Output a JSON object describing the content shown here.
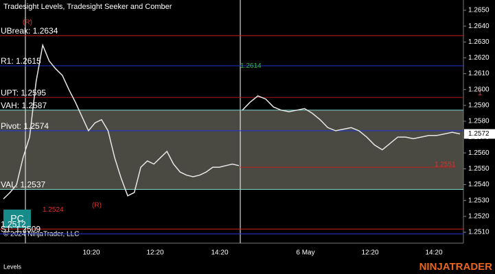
{
  "header": {
    "title": "Tradesight Levels, Tradesight Seeker and Comber"
  },
  "price_axis": {
    "ticks": [
      {
        "value": 1.265,
        "label": "1.2650"
      },
      {
        "value": 1.264,
        "label": "1.2640"
      },
      {
        "value": 1.263,
        "label": "1.2630"
      },
      {
        "value": 1.262,
        "label": "1.2620"
      },
      {
        "value": 1.261,
        "label": "1.2610"
      },
      {
        "value": 1.26,
        "label": "1.2600"
      },
      {
        "value": 1.259,
        "label": "1.2590"
      },
      {
        "value": 1.258,
        "label": "1.2580"
      },
      {
        "value": 1.257,
        "label": "1.2570"
      },
      {
        "value": 1.256,
        "label": "1.2560"
      },
      {
        "value": 1.255,
        "label": "1.2550"
      },
      {
        "value": 1.254,
        "label": "1.2540"
      },
      {
        "value": 1.253,
        "label": "1.2530"
      },
      {
        "value": 1.252,
        "label": "1.2520"
      },
      {
        "value": 1.251,
        "label": "1.2510"
      }
    ],
    "current": 1.2572
  },
  "time_axis": {
    "labels": [
      "10:20",
      "12:20",
      "14:20",
      "6 May",
      "12:20",
      "14:20"
    ]
  },
  "levels": [
    {
      "name": "UBreak: 1.2634",
      "value": 1.2634,
      "color": "#d02020"
    },
    {
      "name": "R1: 1.2615",
      "value": 1.2615,
      "color": "#2030d0"
    },
    {
      "name": "UPT: 1.2595",
      "value": 1.2595,
      "color": "#a01818"
    },
    {
      "name": "VAH: 1.2587",
      "value": 1.2587,
      "color": "#7fd8d0"
    },
    {
      "name": "Pivot: 1.2574",
      "value": 1.2574,
      "color": "#2030e0"
    },
    {
      "name": "VAL: 1.2537",
      "value": 1.2537,
      "color": "#7fd8d0"
    },
    {
      "name": "1.2512",
      "value": 1.2512,
      "color": "#d02020"
    },
    {
      "name": "S1: 1.2509",
      "value": 1.2509,
      "color": "#2030d0"
    }
  ],
  "annotations": {
    "low_target": 1.2524,
    "seeker_top": 1.2614,
    "right_level": 1.2551,
    "marker_one": "1",
    "reversal": "(R)"
  },
  "price": {
    "values": [
      1.2531,
      1.2535,
      1.254,
      1.2557,
      1.257,
      1.2605,
      1.2628,
      1.2618,
      1.2613,
      1.2609,
      1.26,
      1.2592,
      1.2583,
      1.2574,
      1.2579,
      1.2581,
      1.2574,
      1.2557,
      1.2544,
      1.2533,
      1.2535,
      1.2551,
      1.2555,
      1.2553,
      1.2557,
      1.2561,
      1.2553,
      1.2548,
      1.2546,
      1.2545,
      1.2546,
      1.2548,
      1.2551,
      1.2551,
      1.2552,
      1.2553,
      1.2552,
      null,
      1.2587,
      1.2592,
      1.2596,
      1.2594,
      1.2589,
      1.2587,
      1.2586,
      1.2587,
      1.2588,
      1.2585,
      1.2581,
      1.2576,
      1.2574,
      1.2575,
      1.2576,
      1.2574,
      1.257,
      1.2565,
      1.2562,
      1.2566,
      1.257,
      1.257,
      1.2569,
      1.257,
      1.2571,
      1.2571,
      1.2572,
      1.2573,
      1.2572
    ]
  },
  "button": "PC",
  "copyright": "© 2024 NinjaTrader, LLC",
  "footer": {
    "tab": "Levels",
    "brand": "NINJATRADER"
  }
}
